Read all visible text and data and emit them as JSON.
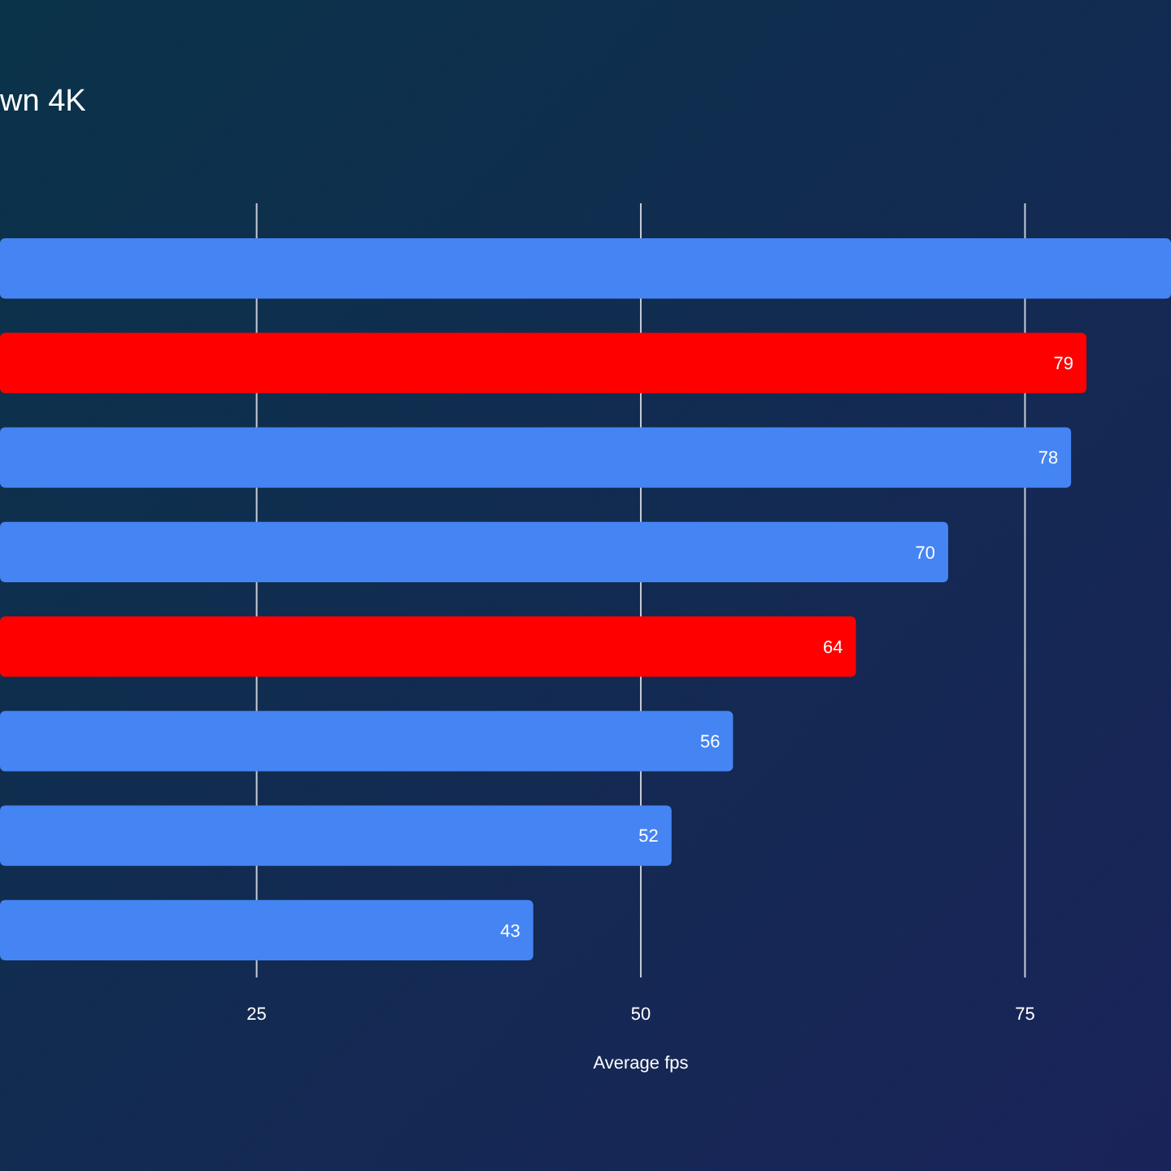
{
  "chart_data": {
    "type": "bar",
    "orientation": "horizontal",
    "title": "wn 4K",
    "xlabel": "Average fps",
    "categories": [
      null,
      null,
      null,
      null,
      null,
      null,
      null,
      null
    ],
    "values": [
      84.5,
      79,
      78,
      70,
      64,
      56,
      52,
      43
    ],
    "value_labels": [
      null,
      "79",
      "78",
      "70",
      "64",
      "56",
      "52",
      "43"
    ],
    "colors": [
      "#4584f3",
      "#ff0000",
      "#4584f3",
      "#4584f3",
      "#ff0000",
      "#4584f3",
      "#4584f3",
      "#4584f3"
    ],
    "xlim": [
      8.3,
      84.5
    ],
    "xticks": [
      25,
      50,
      75
    ],
    "grid": "x"
  }
}
